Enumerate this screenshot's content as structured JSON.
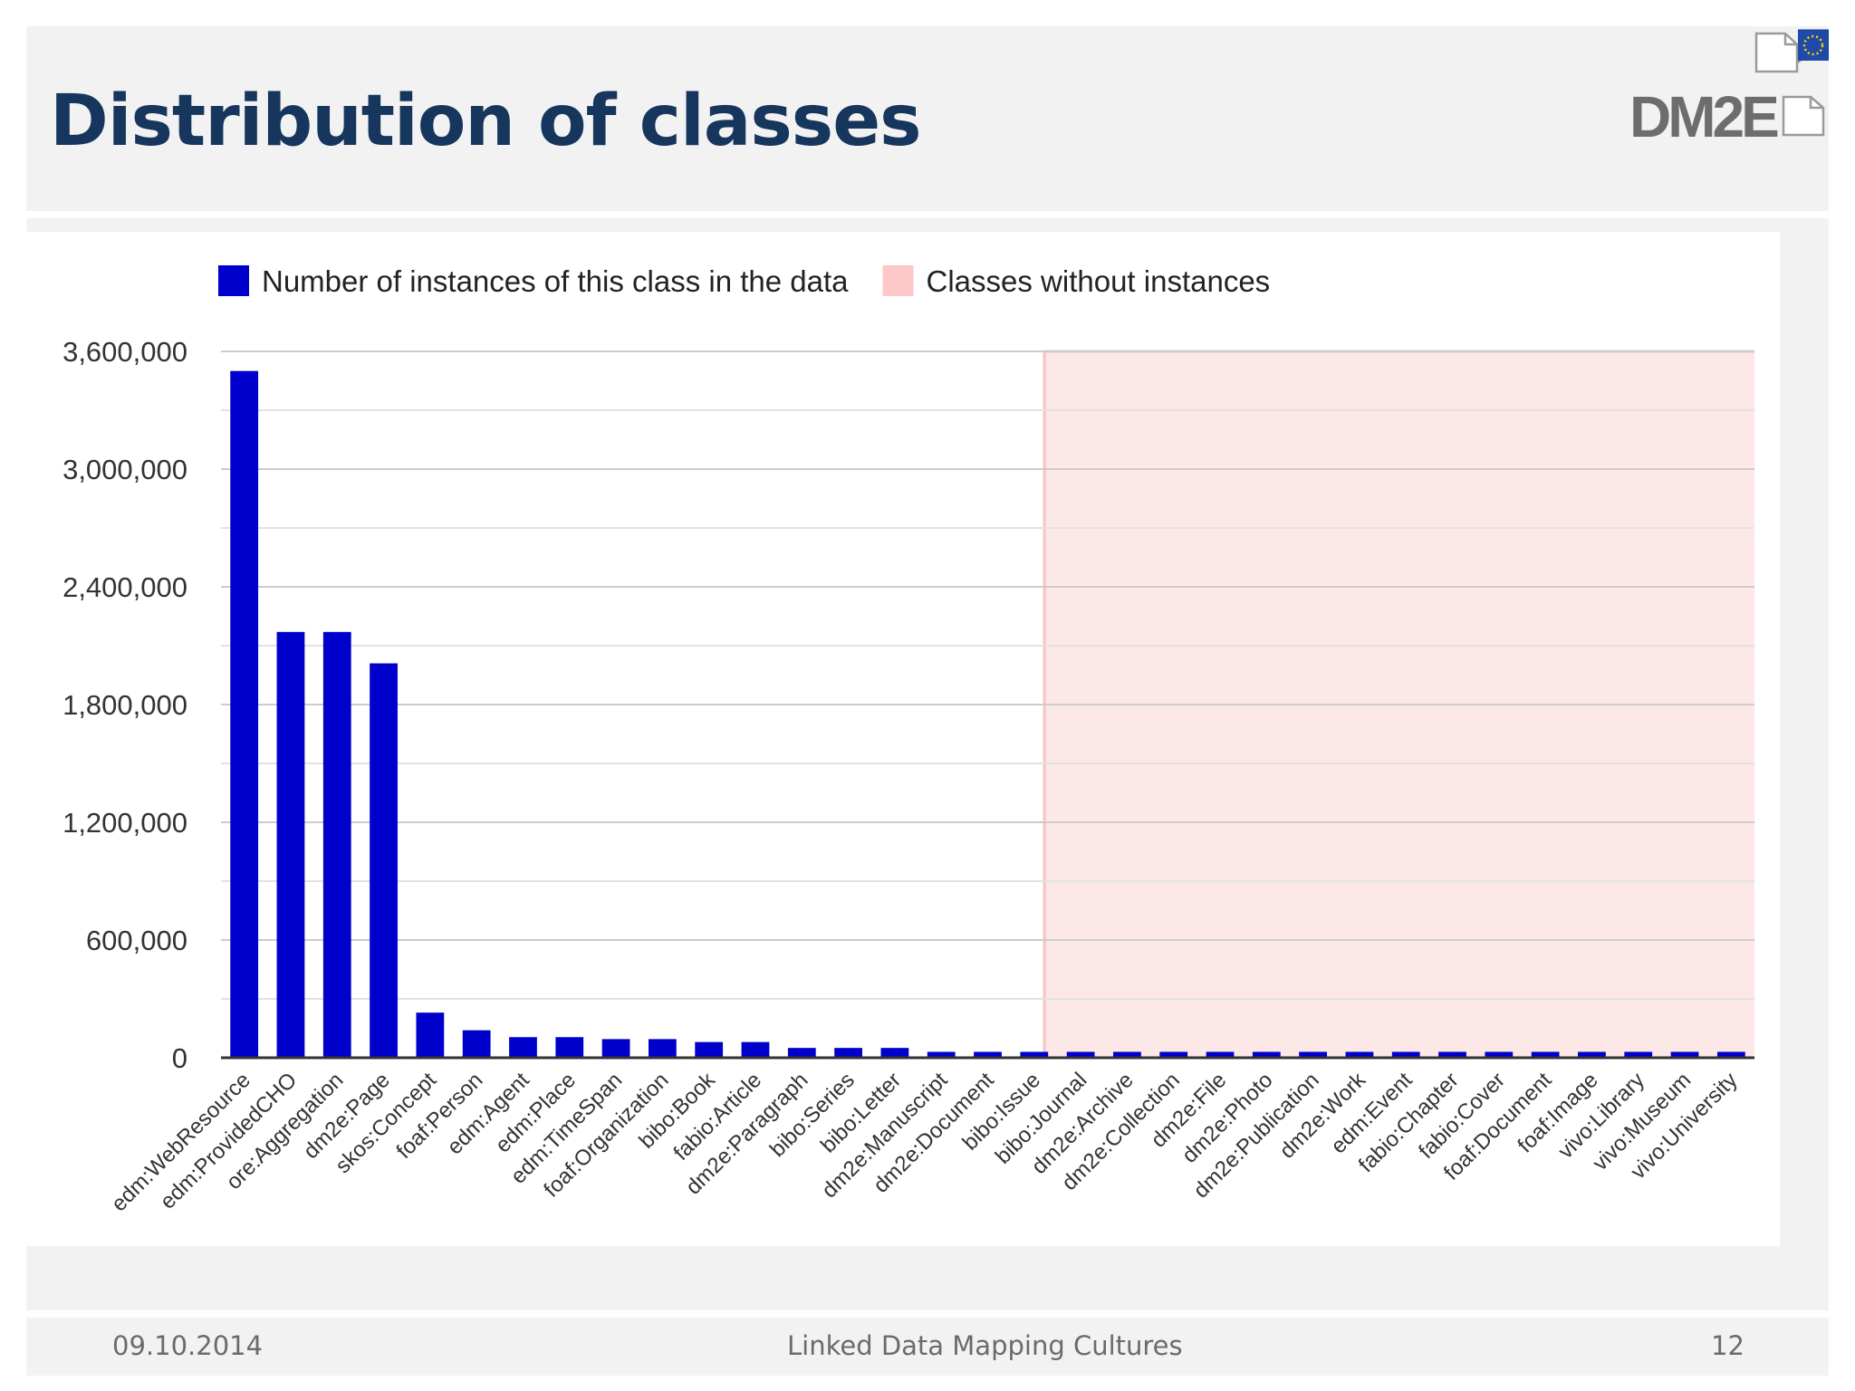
{
  "slide": {
    "title": "Distribution of classes",
    "logo_text": "DM2E",
    "footer": {
      "date": "09.10.2014",
      "center": "Linked Data Mapping Cultures",
      "page": "12"
    }
  },
  "colors": {
    "title": "#17365d",
    "bar": "#0000cc",
    "empty_region": "#fde8e8",
    "empty_region_border": "#f6c4c4",
    "grid": "#cccccc"
  },
  "chart_data": {
    "type": "bar",
    "title": "",
    "xlabel": "",
    "ylabel": "",
    "ylim": [
      0,
      3600000
    ],
    "yticks": [
      0,
      600000,
      1200000,
      1800000,
      2400000,
      3000000,
      3600000
    ],
    "ytick_labels": [
      "0",
      "600,000",
      "1,200,000",
      "1,800,000",
      "2,400,000",
      "3,000,000",
      "3,600,000"
    ],
    "grid": true,
    "legend_position": "top",
    "legend": [
      {
        "label": "Number of instances of this class in the data",
        "color": "#0000cc"
      },
      {
        "label": "Classes without instances",
        "color": "#fcc8c8"
      }
    ],
    "categories": [
      "edm:WebResource",
      "edm:ProvidedCHO",
      "ore:Aggregation",
      "dm2e:Page",
      "skos:Concept",
      "foaf:Person",
      "edm:Agent",
      "edm:Place",
      "edm:TimeSpan",
      "foaf:Organization",
      "bibo:Book",
      "fabio:Article",
      "dm2e:Paragraph",
      "bibo:Series",
      "bibo:Letter",
      "dm2e:Manuscript",
      "dm2e:Document",
      "bibo:Issue",
      "bibo:Journal",
      "dm2e:Archive",
      "dm2e:Collection",
      "dm2e:File",
      "dm2e:Photo",
      "dm2e:Publication",
      "dm2e:Work",
      "edm:Event",
      "fabio:Chapter",
      "fabio:Cover",
      "foaf:Document",
      "foaf:Image",
      "vivo:Library",
      "vivo:Museum",
      "vivo:University"
    ],
    "series": [
      {
        "name": "Number of instances of this class in the data",
        "values": [
          3500000,
          2170000,
          2170000,
          2010000,
          230000,
          140000,
          105000,
          105000,
          95000,
          95000,
          80000,
          80000,
          50000,
          50000,
          50000,
          30000,
          30000,
          30000,
          30000,
          30000,
          30000,
          30000,
          30000,
          30000,
          30000,
          30000,
          30000,
          30000,
          30000,
          30000,
          30000,
          30000,
          30000
        ]
      }
    ],
    "empty_region_start_category": "bibo:Journal",
    "empty_region_end_category": "vivo:University"
  }
}
